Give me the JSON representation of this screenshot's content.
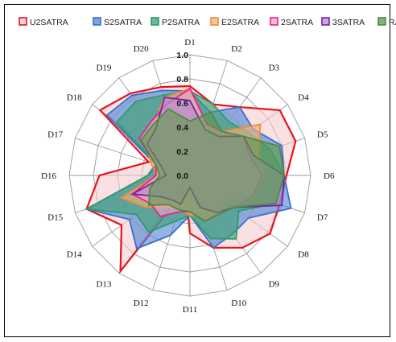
{
  "chart_data": {
    "type": "radar",
    "categories": [
      "D1",
      "D2",
      "D3",
      "D4",
      "D5",
      "D6",
      "D7",
      "D8",
      "D9",
      "D10",
      "D11",
      "D12",
      "D13",
      "D14",
      "D15",
      "D16",
      "D17",
      "D18",
      "D19",
      "D20"
    ],
    "rlim": [
      0,
      1
    ],
    "ticks": [
      "0.0",
      "0.2",
      "0.4",
      "0.6",
      "0.8",
      "1.0"
    ],
    "grid": true,
    "legend_position": "top",
    "series": [
      {
        "name": "U2SATRA",
        "color": "#e8121b",
        "fill": "#f3c6cc",
        "values": [
          0.74,
          0.62,
          0.7,
          0.92,
          0.92,
          0.8,
          0.78,
          0.82,
          0.74,
          0.63,
          0.48,
          0.12,
          0.98,
          0.7,
          0.9,
          0.75,
          0.36,
          0.92,
          0.84,
          0.77
        ]
      },
      {
        "name": "S2SATRA",
        "color": "#3b6fc9",
        "fill": "#4f86d6",
        "values": [
          0.7,
          0.55,
          0.7,
          0.65,
          0.8,
          0.78,
          0.88,
          0.6,
          0.6,
          0.63,
          0.33,
          0.52,
          0.75,
          0.62,
          0.9,
          0.35,
          0.3,
          0.85,
          0.82,
          0.74
        ]
      },
      {
        "name": "P2SATRA",
        "color": "#2c9b6b",
        "fill": "#3d9f72",
        "values": [
          0.7,
          0.62,
          0.55,
          0.6,
          0.7,
          0.78,
          0.75,
          0.5,
          0.65,
          0.55,
          0.33,
          0.4,
          0.58,
          0.55,
          0.9,
          0.35,
          0.28,
          0.75,
          0.76,
          0.7
        ]
      },
      {
        "name": "E2SATRA",
        "color": "#f08c3a",
        "fill": "#f2b17a",
        "values": [
          0.72,
          0.45,
          0.45,
          0.72,
          0.6,
          0.62,
          0.56,
          0.35,
          0.4,
          0.36,
          0.33,
          0.3,
          0.32,
          0.45,
          0.6,
          0.28,
          0.34,
          0.45,
          0.52,
          0.68
        ]
      },
      {
        "name": "2SATRA",
        "color": "#e7208e",
        "fill": "#f5a5cb",
        "values": [
          0.72,
          0.45,
          0.45,
          0.55,
          0.52,
          0.6,
          0.55,
          0.45,
          0.4,
          0.4,
          0.3,
          0.32,
          0.42,
          0.4,
          0.5,
          0.28,
          0.3,
          0.52,
          0.55,
          0.62
        ]
      },
      {
        "name": "3SATRA",
        "color": "#7a1fa2",
        "fill": "#b48ad0",
        "values": [
          0.62,
          0.4,
          0.4,
          0.55,
          0.55,
          0.78,
          0.8,
          0.45,
          0.38,
          0.28,
          0.1,
          0.25,
          0.25,
          0.3,
          0.5,
          0.2,
          0.25,
          0.44,
          0.48,
          0.68
        ]
      },
      {
        "name": "RA",
        "color": "#4d8a45",
        "fill": "#5e9a4e",
        "values": [
          0.45,
          0.55,
          0.45,
          0.55,
          0.78,
          0.78,
          0.75,
          0.45,
          0.4,
          0.4,
          0.3,
          0.3,
          0.3,
          0.42,
          0.35,
          0.25,
          0.3,
          0.5,
          0.52,
          0.58
        ]
      }
    ]
  }
}
